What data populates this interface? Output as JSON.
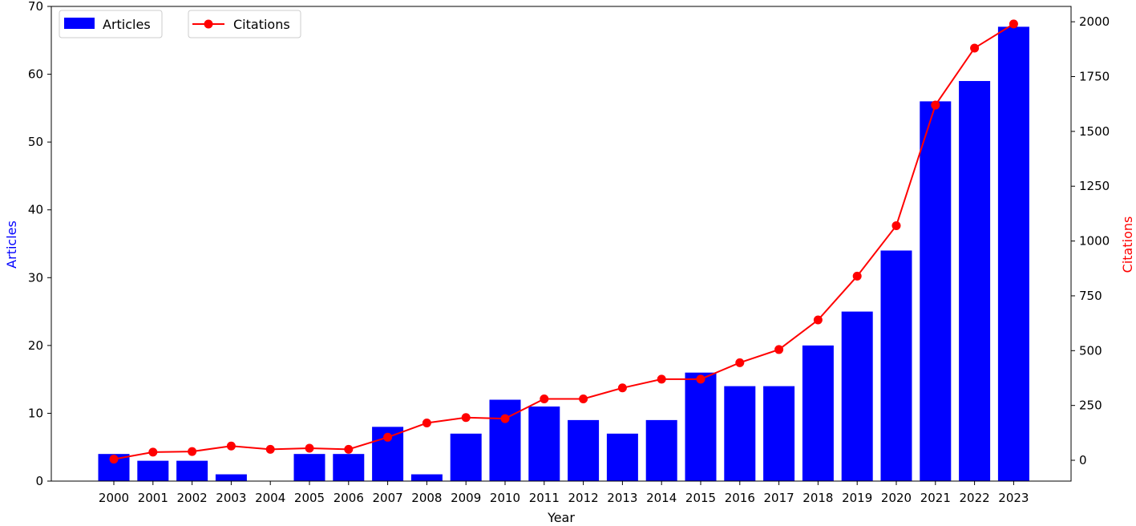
{
  "chart_data": {
    "type": "bar+line",
    "xlabel": "Year",
    "categories": [
      "2000",
      "2001",
      "2002",
      "2003",
      "2004",
      "2005",
      "2006",
      "2007",
      "2008",
      "2009",
      "2010",
      "2011",
      "2012",
      "2013",
      "2014",
      "2015",
      "2016",
      "2017",
      "2018",
      "2019",
      "2020",
      "2021",
      "2022",
      "2023"
    ],
    "series": [
      {
        "name": "Articles",
        "type": "bar",
        "axis": "left",
        "color": "#0000ff",
        "values": [
          4,
          3,
          3,
          1,
          0,
          4,
          4,
          8,
          1,
          7,
          12,
          11,
          9,
          7,
          9,
          16,
          14,
          14,
          20,
          25,
          34,
          56,
          59,
          67
        ]
      },
      {
        "name": "Citations",
        "type": "line",
        "axis": "right",
        "color": "#ff0000",
        "values": [
          5,
          37,
          40,
          65,
          50,
          55,
          50,
          105,
          170,
          195,
          190,
          280,
          280,
          330,
          370,
          370,
          445,
          505,
          640,
          840,
          1070,
          1620,
          1880,
          1990
        ]
      }
    ],
    "y_left": {
      "label": "Articles",
      "label_color": "#0000ff",
      "range": [
        0,
        70
      ],
      "ticks": [
        0,
        10,
        20,
        30,
        40,
        50,
        60,
        70
      ]
    },
    "y_right": {
      "label": "Citations",
      "label_color": "#ff0000",
      "range": [
        -95,
        2070
      ],
      "ticks": [
        0,
        250,
        500,
        750,
        1000,
        1250,
        1500,
        1750,
        2000
      ]
    },
    "legend": [
      {
        "label": "Articles",
        "kind": "bar",
        "placement": "upper-left"
      },
      {
        "label": "Citations",
        "kind": "line",
        "placement": "upper-left"
      }
    ],
    "grid": false
  }
}
